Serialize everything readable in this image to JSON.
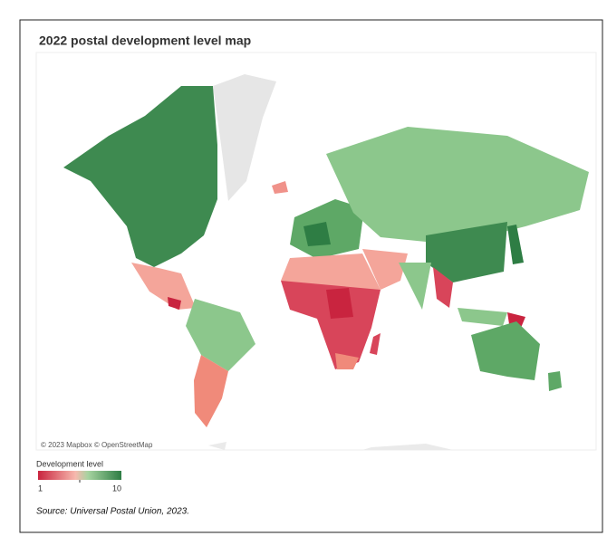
{
  "map": {
    "title": "2022 postal development level map",
    "attribution": "© 2023 Mapbox © OpenStreetMap",
    "legend": {
      "title": "Development level",
      "min": 1,
      "max": 10
    }
  },
  "source": "Source: Universal Postal Union, 2023."
}
